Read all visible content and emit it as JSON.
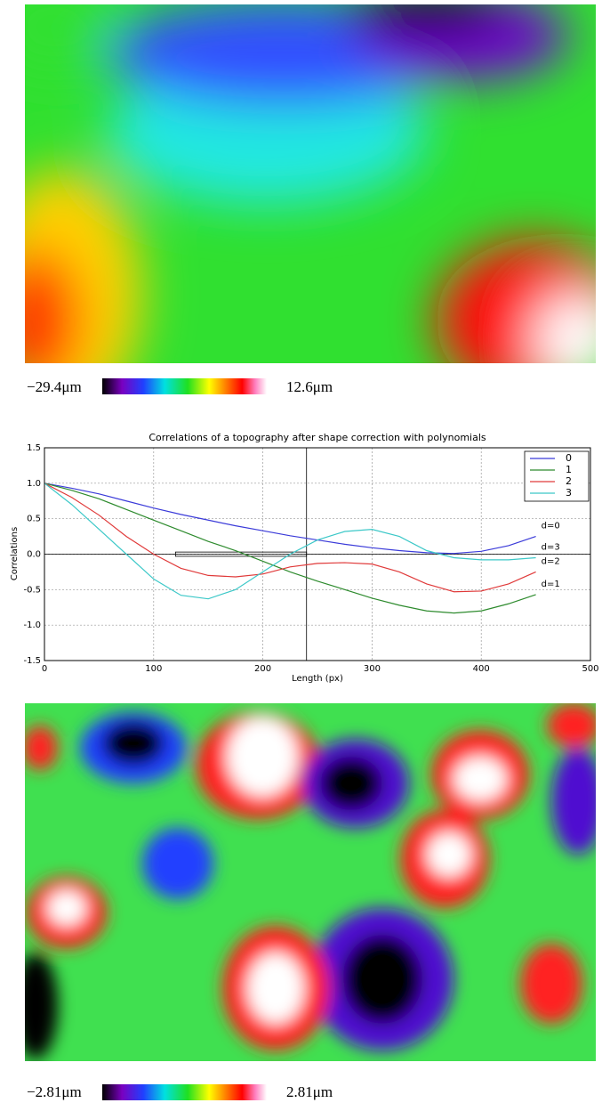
{
  "top_map": {
    "colorbar_min_label": "−29.4μm",
    "colorbar_max_label": "12.6μm"
  },
  "chart_data": {
    "type": "line",
    "title": "Correlations of a topography after shape correction with polynomials",
    "x_label": "Length (px)",
    "y_label": "Correlations",
    "x": [
      0,
      25,
      50,
      75,
      100,
      125,
      150,
      175,
      200,
      225,
      250,
      275,
      300,
      325,
      350,
      375,
      400,
      425,
      450
    ],
    "series": [
      {
        "name": "0",
        "color": "#3b3bd9",
        "end_label": "d=0",
        "values": [
          1.0,
          0.93,
          0.85,
          0.75,
          0.65,
          0.56,
          0.48,
          0.4,
          0.33,
          0.26,
          0.2,
          0.14,
          0.09,
          0.05,
          0.02,
          0.01,
          0.04,
          0.12,
          0.25
        ]
      },
      {
        "name": "1",
        "color": "#2e8b2e",
        "end_label": "d=1",
        "values": [
          1.0,
          0.9,
          0.78,
          0.63,
          0.48,
          0.33,
          0.18,
          0.05,
          -0.1,
          -0.25,
          -0.38,
          -0.5,
          -0.62,
          -0.72,
          -0.8,
          -0.83,
          -0.8,
          -0.7,
          -0.57
        ]
      },
      {
        "name": "2",
        "color": "#e03a3a",
        "end_label": "d=2",
        "values": [
          1.0,
          0.8,
          0.55,
          0.25,
          0.0,
          -0.2,
          -0.3,
          -0.32,
          -0.28,
          -0.18,
          -0.13,
          -0.12,
          -0.14,
          -0.25,
          -0.42,
          -0.53,
          -0.52,
          -0.42,
          -0.25
        ]
      },
      {
        "name": "3",
        "color": "#3cc8c8",
        "end_label": "d=3",
        "values": [
          1.0,
          0.7,
          0.35,
          0.0,
          -0.35,
          -0.58,
          -0.63,
          -0.5,
          -0.25,
          0.0,
          0.2,
          0.32,
          0.35,
          0.25,
          0.05,
          -0.05,
          -0.08,
          -0.08,
          -0.05
        ]
      }
    ],
    "xlim": [
      0,
      500
    ],
    "ylim": [
      -1.5,
      1.5
    ],
    "xticks": [
      0,
      100,
      200,
      300,
      400,
      500
    ],
    "yticks": [
      -1.5,
      {
        "value": -1,
        "label": "-1.0"
      },
      -0.5,
      {
        "value": 0,
        "label": "0.0"
      },
      0.5,
      {
        "value": 1,
        "label": "1.0"
      },
      1.5
    ],
    "grid": true,
    "legend": "upper right",
    "vline": 240,
    "box": {
      "x": [
        120,
        240
      ],
      "y": [
        -0.03,
        0.03
      ]
    }
  },
  "bottom_map": {
    "colorbar_min_label": "−2.81μm",
    "colorbar_max_label": "2.81μm"
  }
}
